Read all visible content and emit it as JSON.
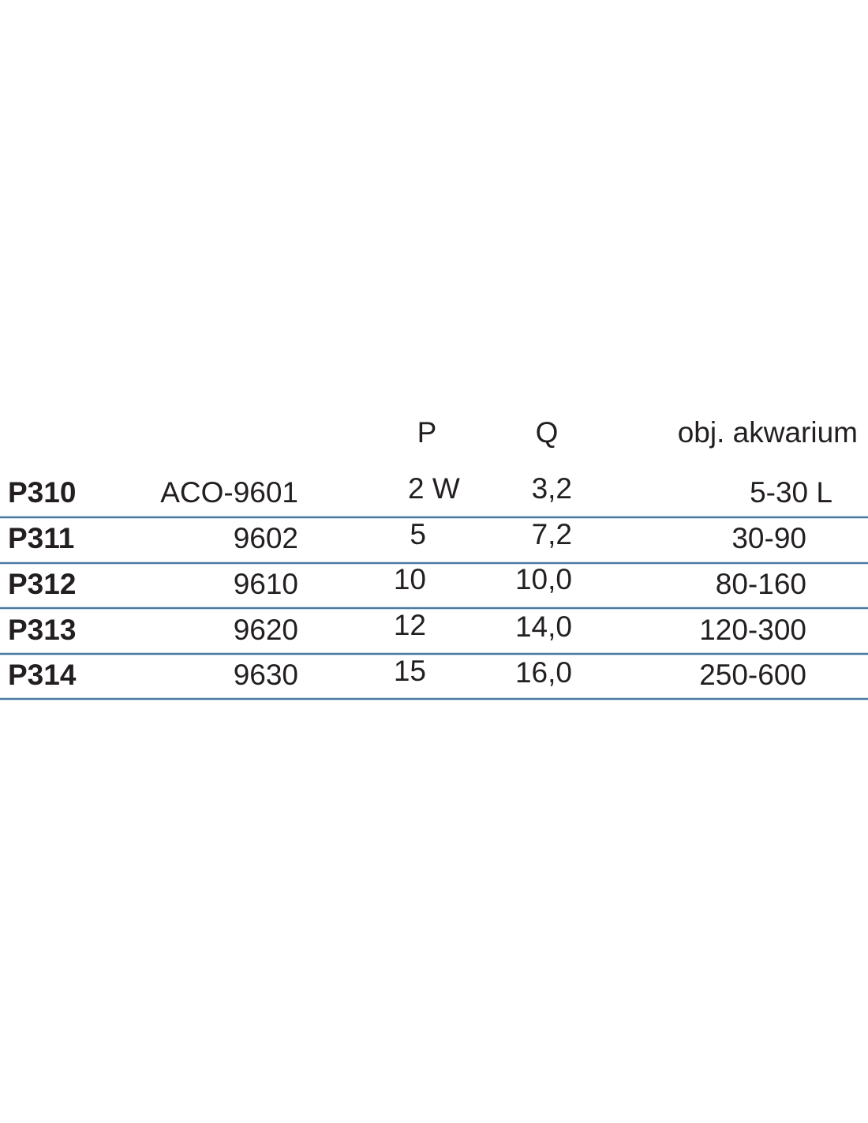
{
  "table": {
    "header": {
      "power": "P",
      "flow": "Q",
      "volume": "obj. akwarium"
    },
    "rows": [
      [
        "P310",
        "ACO-9601",
        "2 W",
        "3,2",
        "5-30 L"
      ],
      [
        "P311",
        "9602",
        "5",
        "7,2",
        "30-90"
      ],
      [
        "P312",
        "9610",
        "10",
        "10,0",
        "80-160"
      ],
      [
        "P313",
        "9620",
        "12",
        "14,0",
        "120-300"
      ],
      [
        "P314",
        "9630",
        "15",
        "16,0",
        "250-600"
      ]
    ]
  }
}
